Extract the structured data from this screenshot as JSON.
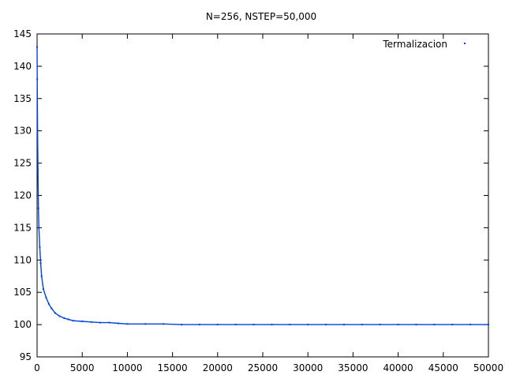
{
  "chart_data": {
    "type": "line",
    "title": "N=256, NSTEP=50,000",
    "xlabel": "",
    "ylabel": "",
    "xlim": [
      0,
      50000
    ],
    "ylim": [
      95,
      145
    ],
    "x_ticks": [
      0,
      5000,
      10000,
      15000,
      20000,
      25000,
      30000,
      35000,
      40000,
      45000,
      50000
    ],
    "y_ticks": [
      95,
      100,
      105,
      110,
      115,
      120,
      125,
      130,
      135,
      140,
      145
    ],
    "x_tick_labels": [
      "0",
      "5000",
      "10000",
      "15000",
      "20000",
      "25000",
      "30000",
      "35000",
      "40000",
      "45000",
      "50000"
    ],
    "y_tick_labels": [
      "95",
      "100",
      "105",
      "110",
      "115",
      "120",
      "125",
      "130",
      "135",
      "140",
      "145"
    ],
    "grid": false,
    "legend_position": "top-right",
    "series": [
      {
        "name": "Termalizacion",
        "color": "#0044dd",
        "x": [
          0,
          20,
          50,
          100,
          150,
          200,
          300,
          400,
          500,
          700,
          1000,
          1300,
          1600,
          2000,
          2500,
          3000,
          3500,
          4000,
          5000,
          6000,
          7000,
          8000,
          9000,
          10000,
          12000,
          14000,
          16000,
          18000,
          20000,
          22000,
          24000,
          26000,
          28000,
          30000,
          32000,
          34000,
          36000,
          38000,
          40000,
          42000,
          44000,
          46000,
          48000,
          50000
        ],
        "y": [
          143,
          138,
          130,
          124,
          118,
          115,
          112,
          109.5,
          107.5,
          105.5,
          104.2,
          103.2,
          102.5,
          101.8,
          101.3,
          101.0,
          100.8,
          100.6,
          100.5,
          100.4,
          100.3,
          100.3,
          100.2,
          100.1,
          100.1,
          100.1,
          100.0,
          100.0,
          100.0,
          100.0,
          100.0,
          100.0,
          100.0,
          100.0,
          100.0,
          100.0,
          100.0,
          100.0,
          100.0,
          100.0,
          100.0,
          100.0,
          100.0,
          100.0
        ]
      }
    ]
  }
}
